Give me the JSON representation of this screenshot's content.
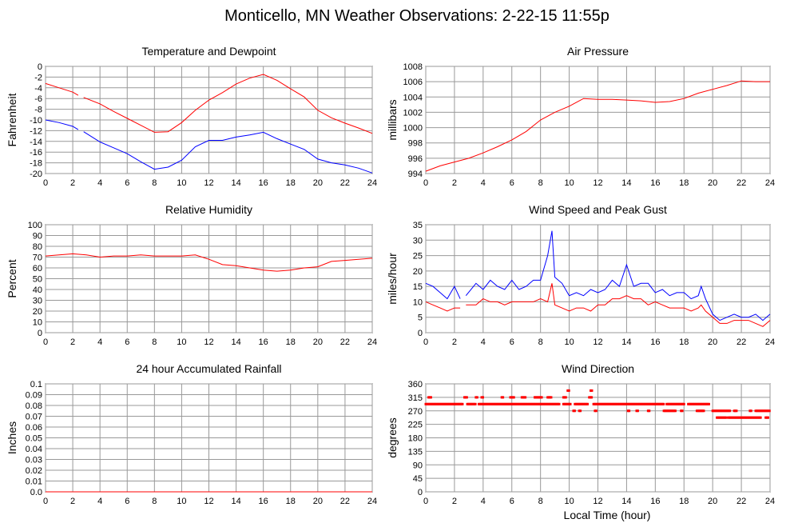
{
  "title": "Monticello, MN Weather Observations: 2-22-15 11:55p",
  "xlabel": "Local Time (hour)",
  "chart_data": [
    {
      "id": "temp",
      "type": "line",
      "title": "Temperature and Dewpoint",
      "ylabel": "Fahrenheit",
      "ylim": [
        -20,
        0
      ],
      "yticks": [
        0,
        -2,
        -4,
        -6,
        -8,
        -10,
        -12,
        -14,
        -16,
        -18,
        -20
      ],
      "xlim": [
        0,
        24
      ],
      "xticks": [
        0,
        2,
        4,
        6,
        8,
        10,
        12,
        14,
        16,
        18,
        20,
        22,
        24
      ],
      "grid": true,
      "series": [
        {
          "name": "Temperature",
          "color": "#ff0000",
          "x": [
            0,
            1,
            2,
            2.4,
            null,
            2.8,
            3,
            4,
            5,
            6,
            7,
            8,
            9,
            10,
            11,
            12,
            13,
            14,
            15,
            16,
            17,
            18,
            19,
            20,
            21,
            22,
            23,
            24
          ],
          "y": [
            -3.2,
            -4,
            -4.8,
            -5.4,
            null,
            -5.8,
            -6,
            -7,
            -8.4,
            -9.7,
            -11,
            -12.3,
            -12.2,
            -10.5,
            -8.2,
            -6.3,
            -4.9,
            -3.3,
            -2.2,
            -1.5,
            -2.6,
            -4.2,
            -5.7,
            -8.2,
            -9.6,
            -10.6,
            -11.5,
            -12.5
          ]
        },
        {
          "name": "Dewpoint",
          "color": "#0000ff",
          "x": [
            0,
            1,
            2,
            2.4,
            null,
            2.8,
            3,
            4,
            5,
            6,
            7,
            8,
            9,
            10,
            11,
            12,
            13,
            14,
            15,
            16,
            17,
            18,
            19,
            20,
            21,
            22,
            23,
            24
          ],
          "y": [
            -10,
            -10.5,
            -11.2,
            -11.8,
            null,
            -12.2,
            -12.5,
            -14.1,
            -15.2,
            -16.3,
            -17.8,
            -19.2,
            -18.8,
            -17.5,
            -15,
            -13.8,
            -13.8,
            -13.2,
            -12.8,
            -12.3,
            -13.5,
            -14.5,
            -15.5,
            -17.3,
            -18,
            -18.4,
            -19,
            -19.9
          ]
        }
      ]
    },
    {
      "id": "pressure",
      "type": "line",
      "title": "Air Pressure",
      "ylabel": "millibars",
      "ylim": [
        994,
        1008
      ],
      "yticks": [
        1008,
        1006,
        1004,
        1002,
        1000,
        998,
        996,
        994
      ],
      "xlim": [
        0,
        24
      ],
      "xticks": [
        0,
        2,
        4,
        6,
        8,
        10,
        12,
        14,
        16,
        18,
        20,
        22,
        24
      ],
      "grid": true,
      "series": [
        {
          "name": "Pressure",
          "color": "#ff0000",
          "x": [
            0,
            1,
            2,
            3,
            4,
            5,
            6,
            7,
            8,
            9,
            10,
            11,
            12,
            13,
            14,
            15,
            16,
            17,
            18,
            19,
            20,
            21,
            22,
            23,
            24
          ],
          "y": [
            994.3,
            995,
            995.5,
            996,
            996.7,
            997.5,
            998.4,
            999.5,
            1001,
            1002,
            1002.8,
            1003.8,
            1003.7,
            1003.7,
            1003.6,
            1003.5,
            1003.3,
            1003.4,
            1003.8,
            1004.5,
            1005,
            1005.5,
            1006.1,
            1006,
            1006
          ]
        }
      ]
    },
    {
      "id": "humidity",
      "type": "line",
      "title": "Relative Humidity",
      "ylabel": "Percent",
      "ylim": [
        0,
        100
      ],
      "yticks": [
        100,
        90,
        80,
        70,
        60,
        50,
        40,
        30,
        20,
        10,
        0
      ],
      "xlim": [
        0,
        24
      ],
      "xticks": [
        0,
        2,
        4,
        6,
        8,
        10,
        12,
        14,
        16,
        18,
        20,
        22,
        24
      ],
      "grid": true,
      "series": [
        {
          "name": "Relative Humidity",
          "color": "#ff0000",
          "x": [
            0,
            1,
            2,
            3,
            4,
            5,
            6,
            7,
            8,
            9,
            10,
            11,
            12,
            13,
            14,
            15,
            16,
            17,
            18,
            19,
            20,
            21,
            22,
            23,
            24
          ],
          "y": [
            71,
            72,
            73,
            72,
            70,
            71,
            71,
            72,
            71,
            71,
            71,
            72,
            68,
            63,
            62,
            60,
            58,
            57,
            58,
            60,
            61,
            66,
            67,
            68,
            69
          ]
        }
      ]
    },
    {
      "id": "wind",
      "type": "line",
      "title": "Wind Speed and Peak Gust",
      "ylabel": "miles/hour",
      "ylim": [
        0,
        35
      ],
      "yticks": [
        35,
        30,
        25,
        20,
        15,
        10,
        5,
        0
      ],
      "xlim": [
        0,
        24
      ],
      "xticks": [
        0,
        2,
        4,
        6,
        8,
        10,
        12,
        14,
        16,
        18,
        20,
        22,
        24
      ],
      "grid": true,
      "series": [
        {
          "name": "Peak Gust",
          "color": "#0000ff",
          "x": [
            0,
            0.5,
            1,
            1.5,
            2,
            2.4,
            null,
            2.8,
            3.5,
            4,
            4.5,
            5,
            5.5,
            6,
            6.5,
            7,
            7.5,
            8,
            8.5,
            8.8,
            9,
            9.5,
            10,
            10.5,
            11,
            11.5,
            12,
            12.5,
            13,
            13.5,
            14,
            14.5,
            15,
            15.5,
            16,
            16.5,
            17,
            17.5,
            18,
            18.5,
            19,
            19.2,
            19.5,
            20,
            20.5,
            21,
            21.5,
            22,
            22.5,
            23,
            23.5,
            24
          ],
          "y": [
            16,
            15,
            13,
            11,
            15,
            11,
            null,
            12,
            16,
            14,
            17,
            15,
            14,
            17,
            14,
            15,
            17,
            17,
            25,
            33,
            18,
            16,
            12,
            13,
            12,
            14,
            13,
            14,
            17,
            15,
            22,
            15,
            16,
            16,
            13,
            14,
            12,
            13,
            13,
            11,
            12,
            15,
            11,
            6,
            4,
            5,
            6,
            5,
            5,
            6,
            4,
            6
          ]
        },
        {
          "name": "Wind Speed",
          "color": "#ff0000",
          "x": [
            0,
            0.5,
            1,
            1.5,
            2,
            2.4,
            null,
            2.8,
            3.5,
            4,
            4.5,
            5,
            5.5,
            6,
            6.5,
            7,
            7.5,
            8,
            8.5,
            8.8,
            9,
            9.5,
            10,
            10.5,
            11,
            11.5,
            12,
            12.5,
            13,
            13.5,
            14,
            14.5,
            15,
            15.5,
            16,
            16.5,
            17,
            17.5,
            18,
            18.5,
            19,
            19.2,
            19.5,
            20,
            20.5,
            21,
            21.5,
            22,
            22.5,
            23,
            23.5,
            24
          ],
          "y": [
            10,
            9,
            8,
            7,
            8,
            8,
            null,
            9,
            9,
            11,
            10,
            10,
            9,
            10,
            10,
            10,
            10,
            11,
            10,
            16,
            9,
            8,
            7,
            8,
            8,
            7,
            9,
            9,
            11,
            11,
            12,
            11,
            11,
            9,
            10,
            9,
            8,
            8,
            8,
            7,
            8,
            9,
            7,
            5,
            3,
            3,
            4,
            4,
            4,
            3,
            2,
            4
          ]
        }
      ]
    },
    {
      "id": "rain",
      "type": "line",
      "title": "24 hour Accumulated Rainfall",
      "ylabel": "Inches",
      "ylim": [
        0,
        0.1
      ],
      "yticks": [
        "0.1",
        "0.09",
        "0.08",
        "0.07",
        "0.06",
        "0.05",
        "0.04",
        "0.03",
        "0.02",
        "0.01",
        "0.0"
      ],
      "xlim": [
        0,
        24
      ],
      "xticks": [
        0,
        2,
        4,
        6,
        8,
        10,
        12,
        14,
        16,
        18,
        20,
        22,
        24
      ],
      "grid": true,
      "series": [
        {
          "name": "Rainfall",
          "color": "#ff0000",
          "x": [
            0,
            24
          ],
          "y": [
            0,
            0
          ]
        }
      ]
    },
    {
      "id": "direction",
      "type": "scatter",
      "title": "Wind Direction",
      "ylabel": "degrees",
      "ylim": [
        0,
        360
      ],
      "yticks": [
        360,
        315,
        270,
        225,
        180,
        135,
        90,
        45,
        0
      ],
      "xlim": [
        0,
        24
      ],
      "xticks": [
        0,
        2,
        4,
        6,
        8,
        10,
        12,
        14,
        16,
        18,
        20,
        22,
        24
      ],
      "grid": true,
      "series": [
        {
          "name": "Wind Direction",
          "color": "#ff0000",
          "runs": [
            [
              292.5,
              0,
              2.6
            ],
            [
              292.5,
              2.9,
              3.5
            ],
            [
              292.5,
              3.7,
              9.3
            ],
            [
              292.5,
              9.6,
              10.1
            ],
            [
              292.5,
              10.4,
              11.3
            ],
            [
              292.5,
              11.7,
              16.6
            ],
            [
              292.5,
              16.8,
              18
            ],
            [
              292.5,
              18.3,
              19.8
            ],
            [
              315,
              0.2,
              0.4
            ],
            [
              315,
              2.7,
              2.9
            ],
            [
              315,
              3.5,
              3.6
            ],
            [
              315,
              3.9,
              4.0
            ],
            [
              315,
              5.3,
              5.4
            ],
            [
              315,
              5.9,
              6.2
            ],
            [
              315,
              6.7,
              7.0
            ],
            [
              315,
              7.6,
              8.1
            ],
            [
              315,
              8.5,
              8.8
            ],
            [
              315,
              9.6,
              9.8
            ],
            [
              315,
              11.4,
              11.6
            ],
            [
              337.5,
              9.9,
              10
            ],
            [
              337.5,
              11.5,
              11.6
            ],
            [
              270,
              10.3,
              10.4
            ],
            [
              270,
              10.7,
              10.8
            ],
            [
              270,
              11.8,
              11.9
            ],
            [
              270,
              14.1,
              14.2
            ],
            [
              270,
              14.7,
              14.8
            ],
            [
              270,
              15.5,
              15.6
            ],
            [
              270,
              16.6,
              17.4
            ],
            [
              270,
              17.8,
              17.9
            ],
            [
              270,
              18.9,
              19.4
            ],
            [
              270,
              20,
              21.2
            ],
            [
              270,
              21.5,
              21.7
            ],
            [
              270,
              22.6,
              22.7
            ],
            [
              270,
              23,
              24
            ],
            [
              247.5,
              20.3,
              21
            ],
            [
              247.5,
              21.1,
              23.4
            ],
            [
              247.5,
              23.7,
              23.9
            ]
          ]
        }
      ]
    }
  ]
}
